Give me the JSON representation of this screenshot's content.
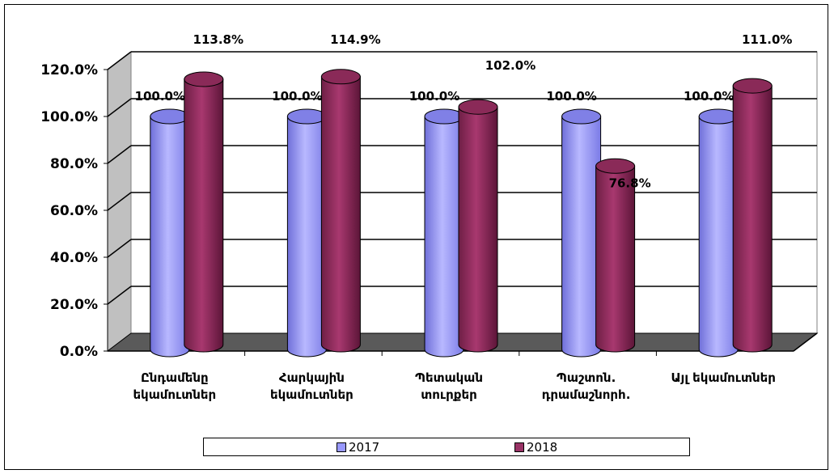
{
  "chart_data": {
    "type": "bar",
    "style": "3d-cylinder",
    "categories": [
      [
        "Ընդամենը",
        "եկամուտներ"
      ],
      [
        "Հարկային",
        "եկամուտներ"
      ],
      [
        "Պետական",
        "տուրքեր"
      ],
      [
        "Պաշտոն.",
        "դրամաշնորհ."
      ],
      [
        "Այլ եկամուտներ"
      ]
    ],
    "series": [
      {
        "name": "2017",
        "values": [
          100.0,
          100.0,
          100.0,
          100.0,
          100.0
        ],
        "labels": [
          "100.0%",
          "100.0%",
          "100.0%",
          "100.0%",
          "100.0%"
        ],
        "color": "#9999ff"
      },
      {
        "name": "2018",
        "values": [
          113.8,
          114.9,
          102.0,
          76.8,
          111.0
        ],
        "labels": [
          "113.8%",
          "114.9%",
          "102.0%",
          "76.8%",
          "111.0%"
        ],
        "color": "#993366"
      }
    ],
    "ylim": [
      0,
      120
    ],
    "yticks": [
      "0.0%",
      "20.0%",
      "40.0%",
      "60.0%",
      "80.0%",
      "100.0%",
      "120.0%"
    ],
    "grid": true,
    "legend_position": "bottom",
    "title": "",
    "xlabel": "",
    "ylabel": ""
  },
  "legend": {
    "items": [
      {
        "label": "2017",
        "color": "#9999ff"
      },
      {
        "label": "2018",
        "color": "#993366"
      }
    ]
  }
}
